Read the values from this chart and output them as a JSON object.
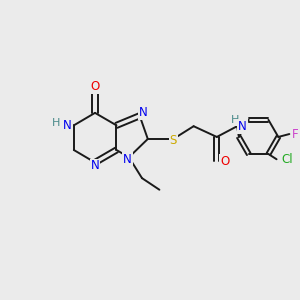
{
  "background_color": "#ebebeb",
  "bond_color": "#1a1a1a",
  "atom_colors": {
    "N": "#0000ee",
    "O": "#ee0000",
    "S": "#ccaa00",
    "Cl": "#22aa22",
    "F": "#cc44cc",
    "H": "#4a8a8a",
    "C": "#1a1a1a"
  },
  "figsize": [
    3.0,
    3.0
  ],
  "dpi": 100,
  "lw": 1.4,
  "fs": 8.5
}
